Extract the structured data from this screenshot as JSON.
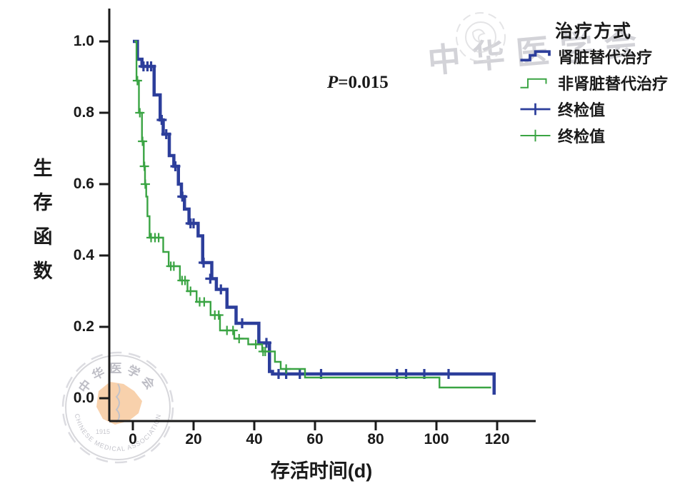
{
  "figure": {
    "background": "#ffffff"
  },
  "colors": {
    "blue": "#2c3e9b",
    "green": "#3aa443",
    "axis": "#1a1a1a",
    "text": "#1a1a1a",
    "watermark_gray": "#d3d3d8",
    "watermark_orange": "#f7c99e"
  },
  "watermarks": {
    "top_right_text": "中华医学会",
    "seal": {
      "top_text": "中华医学会",
      "bottom_text": "CHINESE MEDICAL ASSOCIATION",
      "year": "1915"
    }
  },
  "annotation": {
    "p_label": "P",
    "p_value": "=0.015"
  },
  "legend": {
    "title": "治疗方式",
    "items": [
      {
        "label": "肾脏替代治疗",
        "swatch": "step",
        "series": "rrt"
      },
      {
        "label": "非肾脏替代治疗",
        "swatch": "step",
        "series": "non_rrt"
      },
      {
        "label": "终检值",
        "swatch": "censor",
        "series": "rrt"
      },
      {
        "label": "终检值",
        "swatch": "censor",
        "series": "non_rrt"
      }
    ]
  },
  "chart_data": {
    "type": "line",
    "subtype": "kaplan-meier-step",
    "title": "",
    "xlabel": "存活时间(d)",
    "ylabel": "生存函数",
    "xlim": [
      0,
      132
    ],
    "ylim": [
      0,
      1.0
    ],
    "x_tick_values": [
      0,
      20,
      40,
      60,
      80,
      100,
      120
    ],
    "x_tick_labels": [
      "0",
      "20",
      "40",
      "60",
      "80",
      "100",
      "120"
    ],
    "y_tick_values": [
      1.0,
      0.8,
      0.6,
      0.4,
      0.2,
      0.0
    ],
    "y_tick_labels": [
      "1.0",
      "0.8",
      "0.6",
      "0.4",
      "0.2",
      "0.0"
    ],
    "grid": false,
    "legend_position": "top-right",
    "p_value": 0.015,
    "series": [
      {
        "name": "肾脏替代治疗",
        "color": "#2c3e9b",
        "line_width": 4.5,
        "points": [
          [
            0,
            1.0
          ],
          [
            1.5,
            0.95
          ],
          [
            3,
            0.93
          ],
          [
            7,
            0.85
          ],
          [
            9,
            0.78
          ],
          [
            10,
            0.74
          ],
          [
            12,
            0.68
          ],
          [
            13.5,
            0.65
          ],
          [
            15,
            0.6
          ],
          [
            16,
            0.565
          ],
          [
            17,
            0.53
          ],
          [
            18.5,
            0.49
          ],
          [
            21.5,
            0.455
          ],
          [
            23,
            0.38
          ],
          [
            26,
            0.335
          ],
          [
            27.5,
            0.305
          ],
          [
            31,
            0.255
          ],
          [
            34,
            0.21
          ],
          [
            41.5,
            0.155
          ],
          [
            45,
            0.075
          ],
          [
            46,
            0.068
          ],
          [
            119,
            0.01
          ]
        ],
        "censored": [
          [
            3.5,
            0.93
          ],
          [
            4.8,
            0.93
          ],
          [
            6,
            0.93
          ],
          [
            9.5,
            0.78
          ],
          [
            11,
            0.74
          ],
          [
            14,
            0.65
          ],
          [
            16.3,
            0.565
          ],
          [
            19,
            0.49
          ],
          [
            20,
            0.49
          ],
          [
            23.3,
            0.38
          ],
          [
            25.5,
            0.335
          ],
          [
            29,
            0.305
          ],
          [
            36,
            0.21
          ],
          [
            44,
            0.155
          ],
          [
            48,
            0.068
          ],
          [
            50.5,
            0.068
          ],
          [
            55,
            0.068
          ],
          [
            62,
            0.068
          ],
          [
            87,
            0.068
          ],
          [
            90,
            0.068
          ],
          [
            96,
            0.068
          ],
          [
            104,
            0.068
          ]
        ]
      },
      {
        "name": "非肾脏替代治疗",
        "color": "#3aa443",
        "line_width": 2.4,
        "points": [
          [
            0.5,
            1.0
          ],
          [
            1.2,
            0.89
          ],
          [
            2,
            0.8
          ],
          [
            3,
            0.72
          ],
          [
            3.6,
            0.65
          ],
          [
            4,
            0.6
          ],
          [
            4.4,
            0.565
          ],
          [
            4.8,
            0.51
          ],
          [
            5.5,
            0.45
          ],
          [
            10,
            0.41
          ],
          [
            11.8,
            0.37
          ],
          [
            15.5,
            0.33
          ],
          [
            18,
            0.3
          ],
          [
            21,
            0.27
          ],
          [
            25.6,
            0.233
          ],
          [
            28.7,
            0.19
          ],
          [
            33.4,
            0.167
          ],
          [
            38,
            0.151
          ],
          [
            42.6,
            0.131
          ],
          [
            46.8,
            0.102
          ],
          [
            48.7,
            0.082
          ],
          [
            56.7,
            0.058
          ],
          [
            101,
            0.03
          ],
          [
            118,
            0.03
          ]
        ],
        "censored": [
          [
            1.5,
            0.89
          ],
          [
            2.3,
            0.8
          ],
          [
            3.2,
            0.72
          ],
          [
            3.8,
            0.65
          ],
          [
            4.1,
            0.6
          ],
          [
            6,
            0.45
          ],
          [
            7.3,
            0.45
          ],
          [
            8.5,
            0.45
          ],
          [
            12.5,
            0.37
          ],
          [
            13.5,
            0.37
          ],
          [
            16.2,
            0.33
          ],
          [
            17.2,
            0.33
          ],
          [
            19,
            0.3
          ],
          [
            22,
            0.27
          ],
          [
            23.5,
            0.27
          ],
          [
            27,
            0.233
          ],
          [
            28.3,
            0.233
          ],
          [
            31,
            0.19
          ],
          [
            33,
            0.19
          ],
          [
            35,
            0.167
          ],
          [
            40.5,
            0.151
          ],
          [
            42.9,
            0.131
          ],
          [
            43.6,
            0.131
          ],
          [
            50.5,
            0.082
          ]
        ]
      }
    ],
    "censor_marker": "plus"
  }
}
